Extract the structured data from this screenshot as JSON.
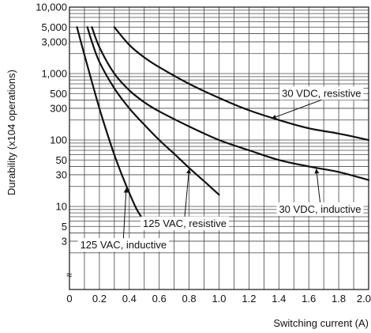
{
  "chart_data": {
    "type": "line",
    "title": "",
    "xlabel": "Switching current (A)",
    "ylabel": "Durability (x104 operations)",
    "xlim": [
      0,
      2.0
    ],
    "ylim": [
      1,
      10000
    ],
    "yscale": "log",
    "grid": true,
    "x_ticks": [
      {
        "value": 0,
        "label": "0"
      },
      {
        "value": 0.2,
        "label": "0.2"
      },
      {
        "value": 0.4,
        "label": "0.4"
      },
      {
        "value": 0.6,
        "label": "0.6"
      },
      {
        "value": 0.8,
        "label": "0.8"
      },
      {
        "value": 1.0,
        "label": "1.0"
      },
      {
        "value": 1.2,
        "label": "1.2"
      },
      {
        "value": 1.4,
        "label": "1.4"
      },
      {
        "value": 1.6,
        "label": "1.6"
      },
      {
        "value": 1.8,
        "label": "1.8"
      },
      {
        "value": 2.0,
        "label": "2.0"
      }
    ],
    "y_ticks": [
      {
        "value": 3,
        "label": "3"
      },
      {
        "value": 5,
        "label": "5"
      },
      {
        "value": 10,
        "label": "10"
      },
      {
        "value": 30,
        "label": "30"
      },
      {
        "value": 50,
        "label": "50"
      },
      {
        "value": 100,
        "label": "100"
      },
      {
        "value": 300,
        "label": "300"
      },
      {
        "value": 500,
        "label": "500"
      },
      {
        "value": 1000,
        "label": "1,000"
      },
      {
        "value": 3000,
        "label": "3,000"
      },
      {
        "value": 5000,
        "label": "5,000"
      },
      {
        "value": 10000,
        "label": "10,000"
      }
    ],
    "axis_break_symbol": "≈",
    "series": [
      {
        "name": "30 VDC, resistive",
        "x": [
          0.3,
          0.4,
          0.5,
          0.6,
          0.8,
          1.0,
          1.2,
          1.4,
          1.6,
          1.8,
          2.0
        ],
        "y": [
          5000,
          2700,
          1750,
          1250,
          700,
          430,
          280,
          200,
          150,
          125,
          100
        ]
      },
      {
        "name": "30 VDC, inductive",
        "x": [
          0.15,
          0.2,
          0.3,
          0.4,
          0.5,
          0.6,
          0.8,
          1.0,
          1.2,
          1.4,
          1.6,
          1.8,
          2.0
        ],
        "y": [
          5000,
          2500,
          1000,
          560,
          370,
          270,
          160,
          100,
          70,
          50,
          40,
          33,
          25
        ]
      },
      {
        "name": "125 VAC, resistive",
        "x": [
          0.12,
          0.15,
          0.2,
          0.3,
          0.4,
          0.5,
          0.6,
          0.7,
          0.8,
          0.9,
          1.0
        ],
        "y": [
          5000,
          3000,
          1500,
          600,
          300,
          170,
          100,
          62,
          38,
          24,
          15
        ]
      },
      {
        "name": "125 VAC, inductive",
        "x": [
          0.05,
          0.1,
          0.15,
          0.2,
          0.25,
          0.3,
          0.35,
          0.4,
          0.45,
          0.5
        ],
        "y": [
          5000,
          1900,
          750,
          300,
          130,
          60,
          30,
          16,
          9,
          6
        ]
      }
    ],
    "annotations": [
      {
        "text": "30 VDC, resistive",
        "x": 1.95,
        "y": 500,
        "arrow_to": {
          "x": 1.35,
          "y": 210
        }
      },
      {
        "text": "30 VDC, inductive",
        "x": 1.95,
        "y": 9,
        "arrow_to": {
          "x": 1.65,
          "y": 37
        }
      },
      {
        "text": "125 VAC, resistive",
        "x": 1.05,
        "y": 5.5,
        "arrow_to": {
          "x": 0.8,
          "y": 37
        }
      },
      {
        "text": "125 VAC, inductive",
        "x": 0.65,
        "y": 2.6,
        "arrow_to": {
          "x": 0.38,
          "y": 19
        }
      }
    ]
  }
}
